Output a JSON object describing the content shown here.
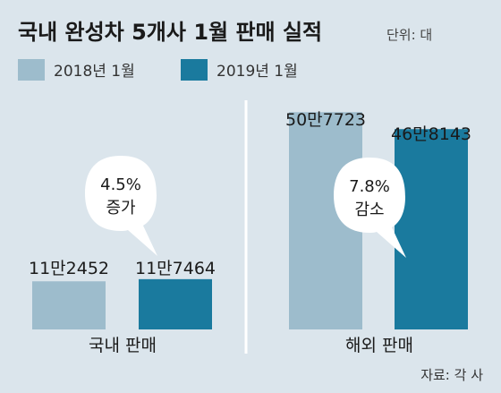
{
  "chart_data": {
    "type": "bar",
    "title": "국내 완성차 5개사 1월 판매 실적",
    "unit_label": "단위: 대",
    "legend": [
      {
        "name": "2018년 1월",
        "color": "#9dbccc"
      },
      {
        "name": "2019년 1월",
        "color": "#1a7a9e"
      }
    ],
    "panels": [
      {
        "category": "국내 판매",
        "values": [
          112452,
          117464
        ],
        "value_labels": [
          "11만2452",
          "11만7464"
        ],
        "change_line1": "4.5%",
        "change_line2": "증가"
      },
      {
        "category": "해외 판매",
        "values": [
          507723,
          468143
        ],
        "value_labels": [
          "50만7723",
          "46만8143"
        ],
        "change_line1": "7.8%",
        "change_line2": "감소"
      }
    ],
    "source": "자료: 각 사"
  }
}
